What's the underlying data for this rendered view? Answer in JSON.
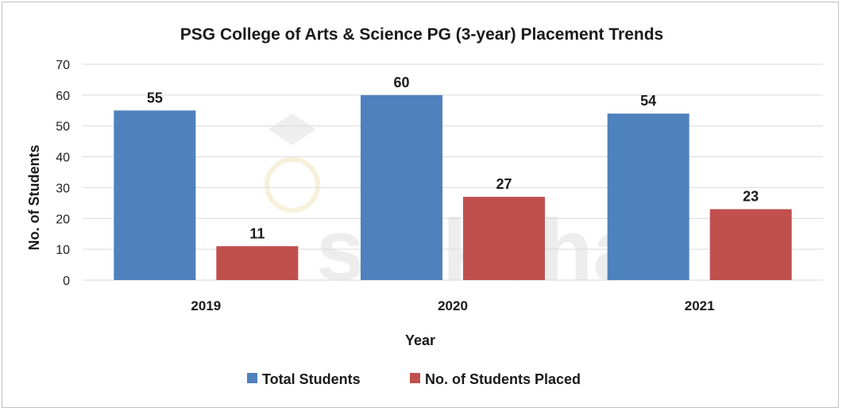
{
  "chart_data": {
    "type": "bar",
    "title": "PSG College of Arts & Science PG (3-year) Placement Trends",
    "xlabel": "Year",
    "ylabel": "No. of Students",
    "categories": [
      "2019",
      "2020",
      "2021"
    ],
    "series": [
      {
        "name": "Total Students",
        "color": "#4f81bd",
        "values": [
          55,
          60,
          54
        ]
      },
      {
        "name": "No. of Students Placed",
        "color": "#c0504d",
        "values": [
          11,
          27,
          23
        ]
      }
    ],
    "ylim": [
      0,
      70
    ],
    "yticks": [
      0,
      10,
      20,
      30,
      40,
      50,
      60,
      70
    ],
    "grid": true,
    "legend_position": "bottom",
    "watermark": "shiksha"
  }
}
